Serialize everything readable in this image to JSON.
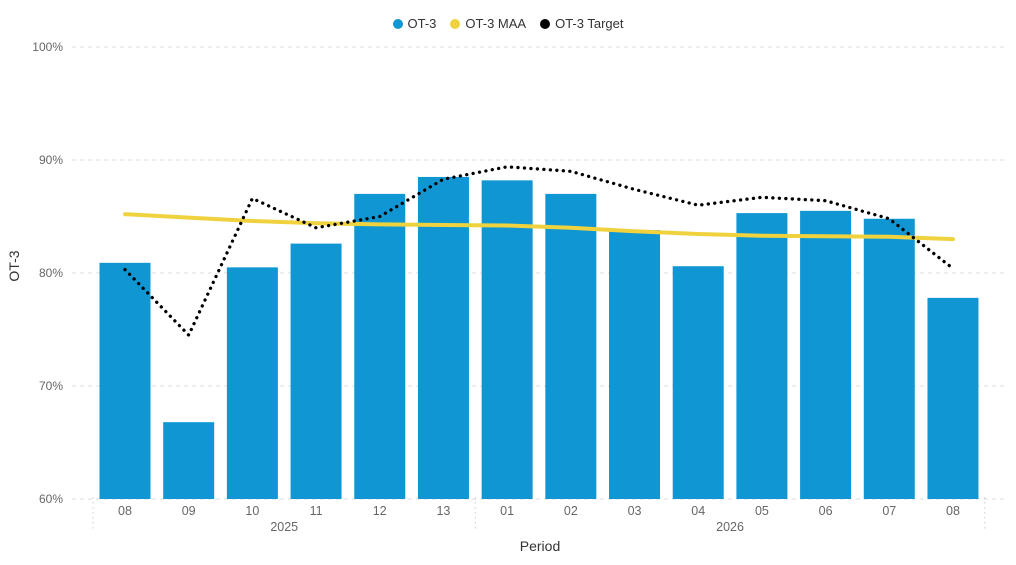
{
  "legend": {
    "position": "top-center"
  },
  "chart_data": {
    "type": "bar",
    "title": "",
    "xlabel": "Period",
    "ylabel": "OT-3",
    "ylim": [
      60,
      100
    ],
    "yticks": [
      {
        "value": 100,
        "label": "100%"
      },
      {
        "value": 90,
        "label": "90%"
      },
      {
        "value": 80,
        "label": "80%"
      },
      {
        "value": 70,
        "label": "70%"
      },
      {
        "value": 60,
        "label": "60%"
      }
    ],
    "categories": [
      "08",
      "09",
      "10",
      "11",
      "12",
      "13",
      "01",
      "02",
      "03",
      "04",
      "05",
      "06",
      "07",
      "08"
    ],
    "year_groups": [
      {
        "label": "2025",
        "from": 0,
        "to": 5
      },
      {
        "label": "2026",
        "from": 6,
        "to": 13
      }
    ],
    "series": [
      {
        "name": "OT-3",
        "type": "bar",
        "color": "#1097D3",
        "values": [
          80.9,
          66.8,
          80.5,
          82.6,
          87.0,
          88.5,
          88.2,
          87.0,
          83.8,
          80.6,
          85.3,
          85.5,
          84.8,
          77.8
        ]
      },
      {
        "name": "OT-3 MAA",
        "type": "line",
        "color": "#F0D23E",
        "values": [
          85.2,
          84.9,
          84.6,
          84.4,
          84.3,
          84.25,
          84.2,
          84.0,
          83.7,
          83.45,
          83.3,
          83.25,
          83.2,
          83.0
        ]
      },
      {
        "name": "OT-3 Target",
        "type": "line-dotted",
        "color": "#000000",
        "values": [
          80.3,
          74.5,
          86.6,
          84.0,
          85.0,
          88.3,
          89.4,
          89.0,
          87.4,
          86.0,
          86.7,
          86.4,
          84.8,
          80.4
        ]
      }
    ],
    "grid": "horizontal-dashed",
    "legend_position": "top-center"
  },
  "colors": {
    "grid_line": "#DDDDDD",
    "tick_text": "#666666",
    "axis_title_text": "#333333",
    "legend_text": "#333333",
    "year_separator": "#CCCCCC",
    "background": "#FFFFFF"
  }
}
